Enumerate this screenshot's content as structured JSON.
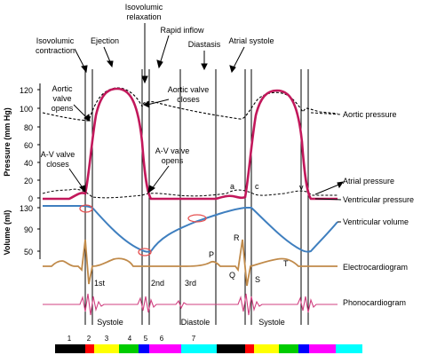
{
  "diagram": {
    "phase_labels": [
      {
        "key": "isovolumic_relaxation",
        "lines": [
          "Isovolumic",
          "relaxation"
        ]
      },
      {
        "key": "isovolumic_contraction",
        "lines": [
          "Isovolumic",
          "contraction"
        ]
      },
      {
        "key": "ejection",
        "lines": [
          "Ejection"
        ]
      },
      {
        "key": "rapid_inflow",
        "lines": [
          "Rapid inflow"
        ]
      },
      {
        "key": "diastasis",
        "lines": [
          "Diastasis"
        ]
      },
      {
        "key": "atrial_systole",
        "lines": [
          "Atrial systole"
        ]
      }
    ],
    "annotations": {
      "aortic_opens": [
        "Aortic",
        "valve",
        "opens"
      ],
      "aortic_closes": [
        "Aortic valve",
        "closes"
      ],
      "av_closes": [
        "A-V valve",
        "closes"
      ],
      "av_opens": [
        "A-V valve",
        "opens"
      ]
    },
    "axis_labels": {
      "pressure": "Pressure (mm Hg)",
      "volume": "Volume (ml)"
    },
    "pressure_ticks": [
      "120",
      "100",
      "80",
      "60",
      "40",
      "20",
      "0"
    ],
    "volume_ticks": [
      "130",
      "90",
      "50"
    ],
    "right_labels": {
      "aortic_pressure": "Aortic pressure",
      "atrial_pressure": "Atrial pressure",
      "ventricular_pressure": "Ventricular pressure",
      "ventricular_volume": "Ventricular volume",
      "electrocardiogram": "Electrocardiogram",
      "phonocardiogram": "Phonocardiogram"
    },
    "wave_letters": {
      "a": "a",
      "c": "c",
      "v": "v"
    },
    "ecg_letters": {
      "P": "P",
      "Q": "Q",
      "R": "R",
      "S": "S",
      "T": "T"
    },
    "heart_sounds": {
      "s1": "1st",
      "s2": "2nd",
      "s3": "3rd"
    },
    "cycle_labels": {
      "systole1": "Systole",
      "diastole": "Diastole",
      "systole2": "Systole"
    },
    "phase_numbers": [
      "1",
      "2",
      "3",
      "4",
      "5",
      "6",
      "7"
    ],
    "phase_bar_colors": [
      "#000000",
      "#ff0000",
      "#ffff00",
      "#00cc00",
      "#0000ff",
      "#ff00ff",
      "#00ffff",
      "#000000",
      "#ff0000",
      "#ffff00",
      "#00cc00",
      "#0000ff",
      "#ff00ff",
      "#00ffff"
    ],
    "colors": {
      "ventricular_pressure": "#c2185b",
      "ventricular_volume": "#3f7fbf",
      "ecg": "#c08a4a",
      "phono": "#d04080",
      "highlight": "#e65050"
    }
  }
}
